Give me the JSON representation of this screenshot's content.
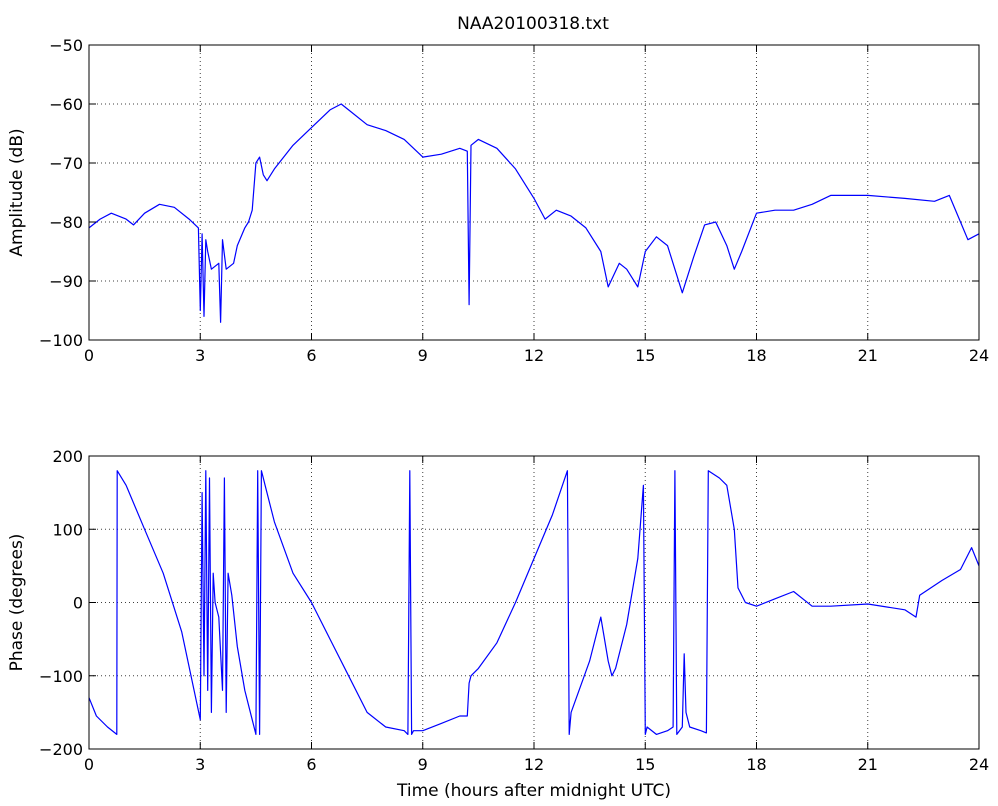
{
  "title": "NAA20100318.txt",
  "colors": {
    "series": "#0000ff",
    "axis": "#000000",
    "background": "#ffffff"
  },
  "chart_data": [
    {
      "type": "line",
      "title": "NAA20100318.txt",
      "xlabel": "",
      "ylabel": "Amplitude (dB)",
      "xlim": [
        0,
        24
      ],
      "ylim": [
        -100,
        -50
      ],
      "xticks": [
        "0",
        "3",
        "6",
        "9",
        "12",
        "15",
        "18",
        "21",
        "24"
      ],
      "yticks": [
        "−100",
        "−90",
        "−80",
        "−70",
        "−60",
        "−50"
      ],
      "grid": true,
      "series": [
        {
          "x": [
            0,
            0.3,
            0.6,
            1.0,
            1.2,
            1.5,
            1.9,
            2.3,
            2.7,
            2.95,
            3.0,
            3.05,
            3.1,
            3.15,
            3.2,
            3.3,
            3.5,
            3.55,
            3.6,
            3.7,
            3.9,
            4.0,
            4.2,
            4.3,
            4.4,
            4.5,
            4.6,
            4.7,
            4.8,
            5.0,
            5.5,
            6.0,
            6.5,
            6.8,
            7.0,
            7.5,
            8.0,
            8.5,
            9.0,
            9.5,
            10.0,
            10.2,
            10.25,
            10.3,
            10.5,
            11.0,
            11.5,
            12.0,
            12.3,
            12.6,
            13.0,
            13.4,
            13.8,
            14.0,
            14.3,
            14.5,
            14.8,
            15.0,
            15.3,
            15.6,
            16.0,
            16.3,
            16.6,
            16.9,
            17.2,
            17.4,
            17.6,
            18.0,
            18.5,
            19.0,
            19.5,
            20.0,
            21.0,
            22.0,
            22.8,
            23.2,
            23.5,
            23.7,
            24.0
          ],
          "y": [
            -81,
            -79.5,
            -78.5,
            -79.5,
            -80.5,
            -78.5,
            -77,
            -77.5,
            -79.5,
            -81,
            -95,
            -82,
            -96,
            -83,
            -85,
            -88,
            -87,
            -97,
            -83,
            -88,
            -87,
            -84,
            -81,
            -80,
            -78,
            -70,
            -69,
            -72,
            -73,
            -71,
            -67,
            -64,
            -61,
            -60,
            -61,
            -63.5,
            -64.5,
            -66,
            -69,
            -68.5,
            -67.5,
            -68,
            -94,
            -67,
            -66,
            -67.5,
            -71,
            -76,
            -79.5,
            -78,
            -79,
            -81,
            -85,
            -91,
            -87,
            -88,
            -91,
            -85,
            -82.5,
            -84,
            -92,
            -86,
            -80.5,
            -80,
            -84,
            -88,
            -85,
            -78.5,
            -78,
            -78,
            -77,
            -75.5,
            -75.5,
            -76,
            -76.5,
            -75.5,
            -80,
            -83,
            -82
          ]
        }
      ]
    },
    {
      "type": "line",
      "title": "",
      "xlabel": "Time (hours after midnight UTC)",
      "ylabel": "Phase (degrees)",
      "xlim": [
        0,
        24
      ],
      "ylim": [
        -200,
        200
      ],
      "xticks": [
        "0",
        "3",
        "6",
        "9",
        "12",
        "15",
        "18",
        "21",
        "24"
      ],
      "yticks": [
        "−200",
        "−100",
        "0",
        "100",
        "200"
      ],
      "grid": true,
      "series": [
        {
          "x": [
            0,
            0.2,
            0.5,
            0.75,
            0.76,
            1.0,
            1.5,
            2.0,
            2.5,
            3.0,
            3.05,
            3.1,
            3.15,
            3.2,
            3.25,
            3.3,
            3.35,
            3.4,
            3.5,
            3.6,
            3.65,
            3.7,
            3.75,
            3.85,
            4.0,
            4.2,
            4.4,
            4.5,
            4.55,
            4.6,
            4.65,
            4.7,
            4.75,
            5.0,
            5.5,
            6.0,
            6.5,
            7.0,
            7.5,
            8.0,
            8.5,
            8.6,
            8.65,
            8.7,
            8.75,
            9.0,
            9.5,
            10.0,
            10.2,
            10.25,
            10.3,
            10.5,
            11.0,
            11.5,
            12.0,
            12.5,
            12.9,
            12.95,
            13.0,
            13.5,
            13.8,
            14.0,
            14.1,
            14.2,
            14.5,
            14.8,
            14.95,
            15.0,
            15.05,
            15.3,
            15.6,
            15.75,
            15.8,
            15.85,
            16.0,
            16.05,
            16.1,
            16.2,
            16.5,
            16.65,
            16.7,
            17.0,
            17.2,
            17.4,
            17.5,
            17.7,
            18.0,
            18.5,
            19.0,
            19.5,
            20.0,
            21.0,
            22.0,
            22.3,
            22.4,
            23.0,
            23.5,
            23.8,
            24.0
          ],
          "y": [
            -130,
            -155,
            -170,
            -180,
            180,
            160,
            100,
            40,
            -40,
            -160,
            150,
            -100,
            180,
            -120,
            170,
            -150,
            40,
            0,
            -20,
            -120,
            170,
            -150,
            40,
            10,
            -60,
            -120,
            -160,
            -180,
            180,
            -180,
            180,
            170,
            160,
            110,
            40,
            0,
            -50,
            -100,
            -150,
            -170,
            -175,
            -180,
            180,
            -180,
            -175,
            -175,
            -165,
            -155,
            -155,
            -110,
            -100,
            -90,
            -55,
            0,
            60,
            120,
            180,
            -180,
            -150,
            -80,
            -20,
            -80,
            -100,
            -90,
            -30,
            60,
            160,
            -180,
            -170,
            -180,
            -175,
            -170,
            180,
            -180,
            -170,
            -70,
            -150,
            -170,
            -175,
            -178,
            180,
            170,
            160,
            100,
            20,
            0,
            -5,
            5,
            15,
            -5,
            -5,
            -2,
            -10,
            -20,
            10,
            30,
            45,
            75,
            50
          ]
        }
      ]
    }
  ]
}
